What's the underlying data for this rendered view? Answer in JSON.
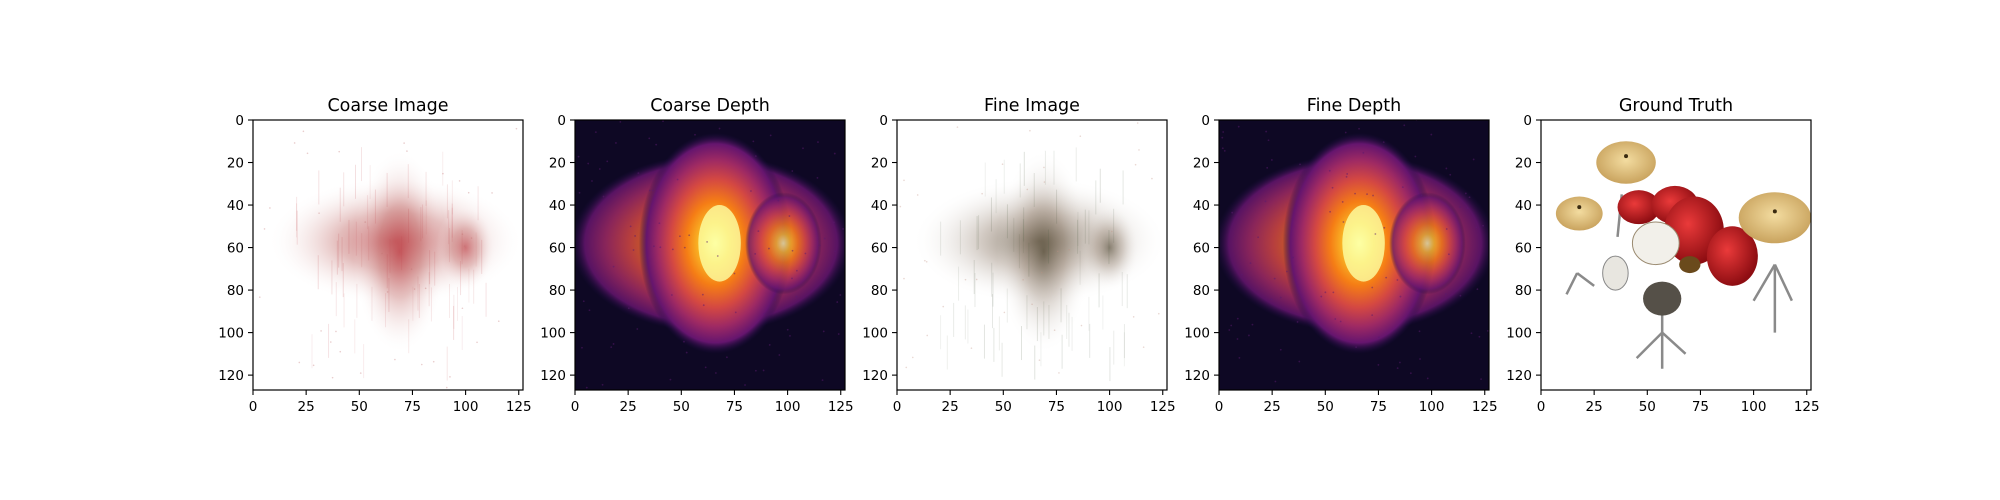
{
  "chart_data": [
    {
      "type": "heatmap",
      "title": "Coarse Image",
      "xlim": [
        0,
        127
      ],
      "ylim": [
        127,
        0
      ],
      "xticks": [
        0,
        25,
        50,
        75,
        100,
        125
      ],
      "yticks": [
        0,
        20,
        40,
        60,
        80,
        100,
        120
      ],
      "content": "rgb-render",
      "colors": {
        "background": "#ffffff",
        "tint": "#c0464c",
        "shadow": "#5c5048"
      }
    },
    {
      "type": "heatmap",
      "title": "Coarse Depth",
      "xlim": [
        0,
        127
      ],
      "ylim": [
        127,
        0
      ],
      "xticks": [
        0,
        25,
        50,
        75,
        100,
        125
      ],
      "yticks": [
        0,
        20,
        40,
        60,
        80,
        100,
        120
      ],
      "content": "depth-map",
      "colormap": "inferno"
    },
    {
      "type": "heatmap",
      "title": "Fine Image",
      "xlim": [
        0,
        127
      ],
      "ylim": [
        127,
        0
      ],
      "xticks": [
        0,
        25,
        50,
        75,
        100,
        125
      ],
      "yticks": [
        0,
        20,
        40,
        60,
        80,
        100,
        120
      ],
      "content": "rgb-render",
      "colors": {
        "background": "#ffffff",
        "tint": "#7a5a48",
        "shadow": "#4f5e44"
      }
    },
    {
      "type": "heatmap",
      "title": "Fine Depth",
      "xlim": [
        0,
        127
      ],
      "ylim": [
        127,
        0
      ],
      "xticks": [
        0,
        25,
        50,
        75,
        100,
        125
      ],
      "yticks": [
        0,
        20,
        40,
        60,
        80,
        100,
        120
      ],
      "content": "depth-map",
      "colormap": "inferno"
    },
    {
      "type": "heatmap",
      "title": "Ground Truth",
      "xlim": [
        0,
        127
      ],
      "ylim": [
        127,
        0
      ],
      "xticks": [
        0,
        25,
        50,
        75,
        100,
        125
      ],
      "yticks": [
        0,
        20,
        40,
        60,
        80,
        100,
        120
      ],
      "content": "drum-kit-photo",
      "colors": {
        "background": "#ffffff",
        "drum": "#c8141c",
        "cymbal": "#d9b978",
        "metal": "#8a8a8a",
        "head": "#f2f0ea"
      }
    }
  ]
}
